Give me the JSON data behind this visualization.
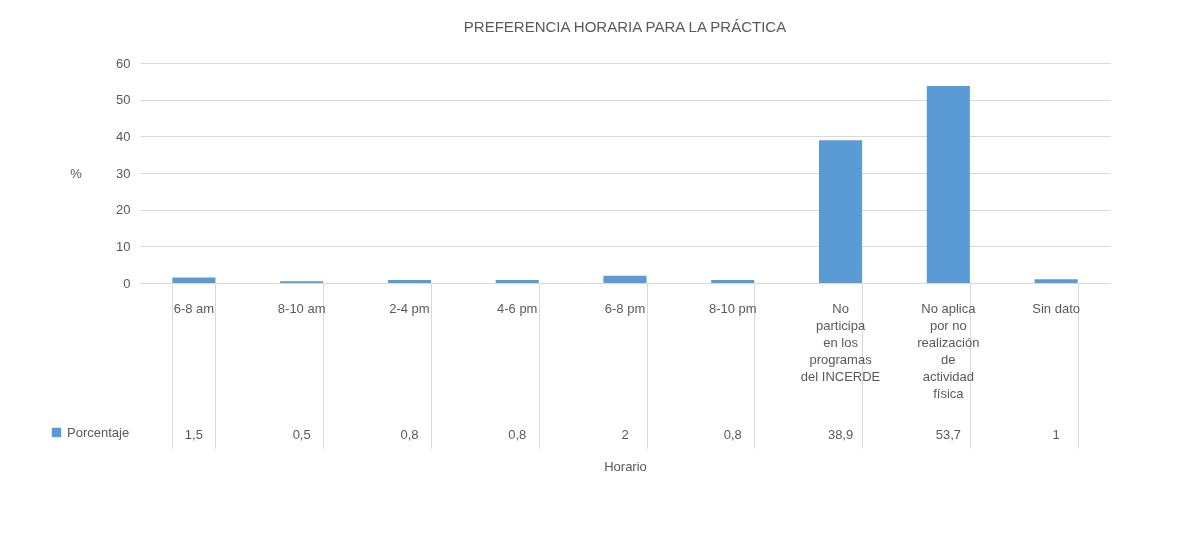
{
  "chart_data": {
    "type": "bar",
    "title": "PREFERENCIA HORARIA PARA LA PRÁCTICA",
    "xlabel": "Horario",
    "ylabel": "%",
    "categories": [
      "6-8 am",
      "8-10 am",
      "2-4 pm",
      "4-6 pm",
      "6-8 pm",
      "8-10 pm",
      "No participa en los programas del INCERDE",
      "No aplica por no realización de actividad física",
      "Sin dato"
    ],
    "series": [
      {
        "name": "Porcentaje",
        "color": "#5b9bd5",
        "values": [
          1.5,
          0.5,
          0.8,
          0.8,
          2,
          0.8,
          38.9,
          53.7,
          1
        ]
      }
    ],
    "value_labels": [
      "1,5",
      "0,5",
      "0,8",
      "0,8",
      "2",
      "0,8",
      "38,9",
      "53,7",
      "1"
    ],
    "ylim": [
      0,
      60
    ],
    "yticks": [
      0,
      10,
      20,
      30,
      40,
      50,
      60
    ],
    "grid": "y",
    "legend": "bottom left"
  }
}
